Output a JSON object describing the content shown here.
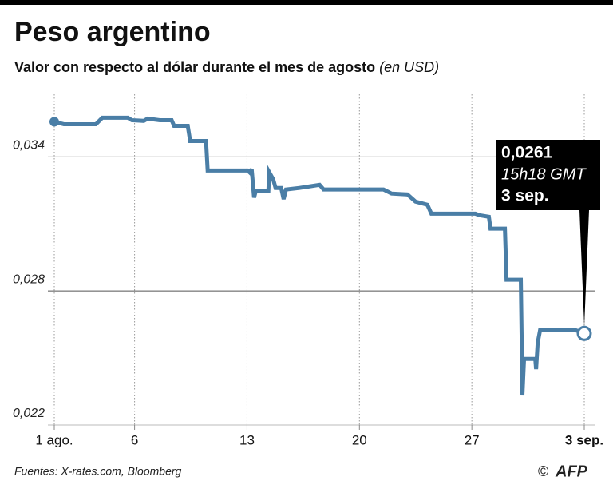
{
  "chart_data": {
    "type": "line",
    "title": "Peso argentino",
    "subtitle": "Valor con respecto al dólar durante el mes de agosto",
    "subtitle_unit": "(en USD)",
    "x": [
      0,
      0.6,
      2.59,
      2.99,
      4.58,
      4.83,
      5.57,
      5.82,
      6.57,
      7.31,
      7.46,
      8.31,
      8.46,
      9.45,
      9.55,
      12.04,
      12.19,
      12.29,
      12.44,
      12.54,
      13.33,
      13.38,
      13.63,
      13.78,
      14.13,
      14.28,
      14.43,
      15.27,
      16.52,
      16.77,
      20.5,
      21.0,
      21.99,
      22.49,
      23.23,
      23.48,
      26.22,
      26.47,
      27.06,
      27.16,
      28.06,
      28.16,
      29.05,
      29.15,
      29.25,
      29.95,
      30.0,
      30.1,
      30.25,
      32.44,
      33
    ],
    "values": [
      0.03557,
      0.03546,
      0.03546,
      0.03575,
      0.03575,
      0.03564,
      0.03561,
      0.03571,
      0.03564,
      0.03564,
      0.03539,
      0.03539,
      0.03471,
      0.03471,
      0.03339,
      0.03339,
      0.03329,
      0.03346,
      0.03218,
      0.03246,
      0.03246,
      0.03332,
      0.033,
      0.03261,
      0.03261,
      0.03211,
      0.03254,
      0.03261,
      0.03275,
      0.03254,
      0.03254,
      0.03236,
      0.03232,
      0.032,
      0.03186,
      0.03146,
      0.03146,
      0.03139,
      0.03132,
      0.03079,
      0.03079,
      0.0285,
      0.0285,
      0.02336,
      0.02496,
      0.02496,
      0.0245,
      0.02568,
      0.02625,
      0.02625,
      0.0261
    ],
    "color": "#4a7ea6",
    "xlim": [
      0,
      33
    ],
    "xticks": [
      {
        "value": 0,
        "label": "1 ago."
      },
      {
        "value": 5,
        "label": "6"
      },
      {
        "value": 12,
        "label": "13"
      },
      {
        "value": 19,
        "label": "20"
      },
      {
        "value": 26,
        "label": "27"
      },
      {
        "value": 33,
        "label": "3 sep."
      }
    ],
    "ylim": [
      0.022,
      0.0368
    ],
    "yticks": [
      {
        "value": 0.022,
        "label": "0,022"
      },
      {
        "value": 0.028,
        "label": "0,028"
      },
      {
        "value": 0.034,
        "label": "0,034"
      }
    ],
    "grid": true,
    "annotation": {
      "value": "0,0261",
      "time": "15h18 GMT",
      "date": "3 sep."
    },
    "source": "Fuentes: X-rates.com, Bloomberg",
    "credit": "©",
    "logo": "AFP"
  }
}
